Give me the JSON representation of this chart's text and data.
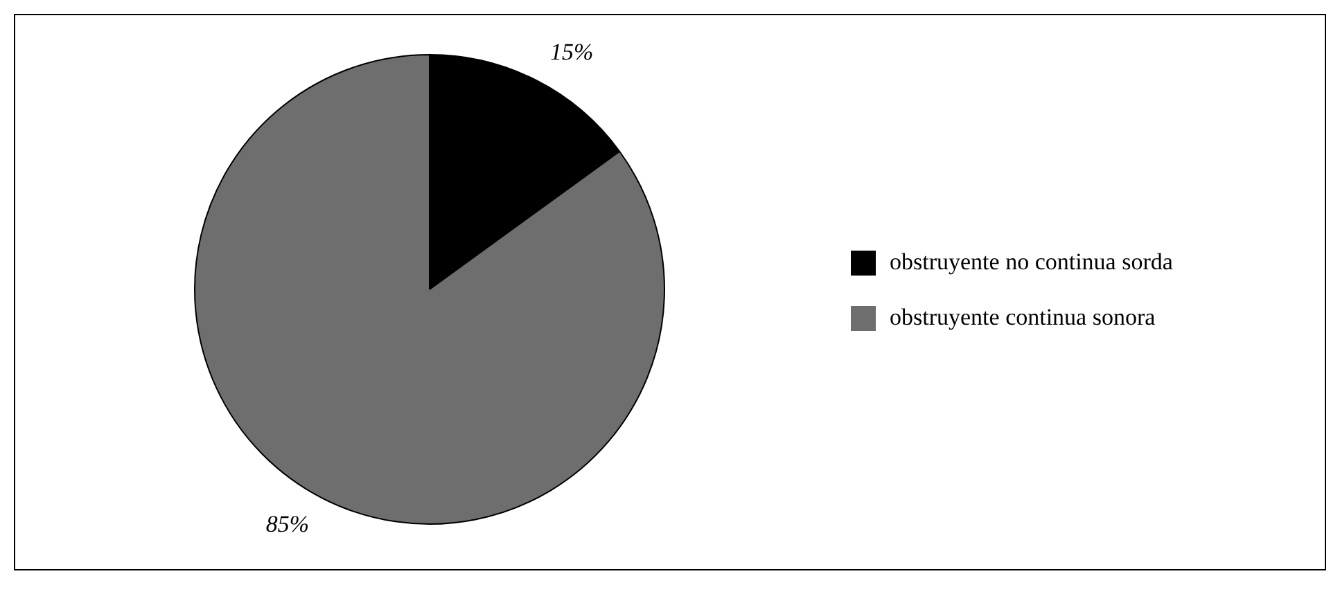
{
  "chart_data": {
    "type": "pie",
    "categories": [
      "obstruyente no continua sorda",
      "obstruyente continua sonora"
    ],
    "values": [
      15,
      85
    ],
    "colors": [
      "#000000",
      "#6e6e6e"
    ],
    "value_labels": [
      "15%",
      "85%"
    ],
    "legend": "right"
  }
}
